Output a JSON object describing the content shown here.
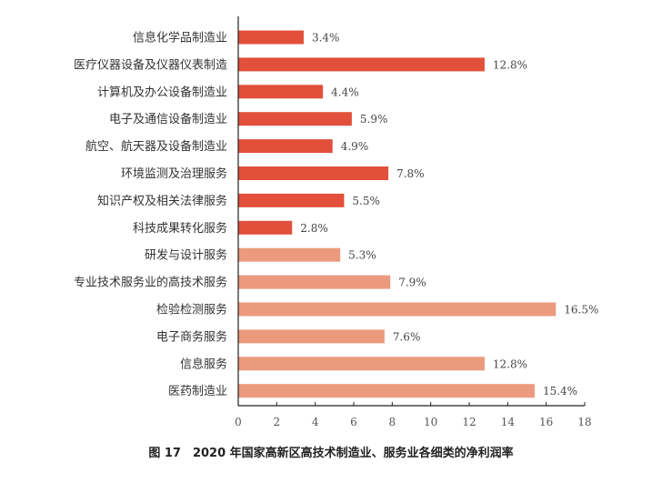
{
  "chart_data": {
    "type": "bar",
    "orientation": "horizontal",
    "title": "图 17　2020 年国家高新区高技术制造业、服务业各细类的净利润率",
    "categories": [
      "信息化学品制造业",
      "医疗仪器设备及仪器仪表制造",
      "计算机及办公设备制造业",
      "电子及通信设备制造业",
      "航空、航天器及设备制造业",
      "环境监测及治理服务",
      "知识产权及相关法律服务",
      "科技成果转化服务",
      "研发与设计服务",
      "专业技术服务业的高技术服务",
      "检验检测服务",
      "电子商务服务",
      "信息服务",
      "医药制造业"
    ],
    "values": [
      3.4,
      12.8,
      4.4,
      5.9,
      4.9,
      7.8,
      5.5,
      2.8,
      5.3,
      7.9,
      16.5,
      7.6,
      12.8,
      15.4
    ],
    "value_labels": [
      "3.4%",
      "12.8%",
      "4.4%",
      "5.9%",
      "4.9%",
      "7.8%",
      "5.5%",
      "2.8%",
      "5.3%",
      "7.9%",
      "16.5%",
      "7.6%",
      "12.8%",
      "15.4%"
    ],
    "groups": [
      "dark",
      "dark",
      "dark",
      "dark",
      "dark",
      "dark",
      "dark",
      "dark",
      "light",
      "light",
      "light",
      "light",
      "light",
      "light"
    ],
    "colors": {
      "dark": "#e2503c",
      "light": "#ec9a7e"
    },
    "xlim": [
      0,
      18
    ],
    "xticks": [
      "0",
      "2",
      "4",
      "6",
      "8",
      "10",
      "12",
      "14",
      "16",
      "18"
    ],
    "xlabel": "",
    "ylabel": "",
    "grid": false,
    "legend": "none"
  }
}
